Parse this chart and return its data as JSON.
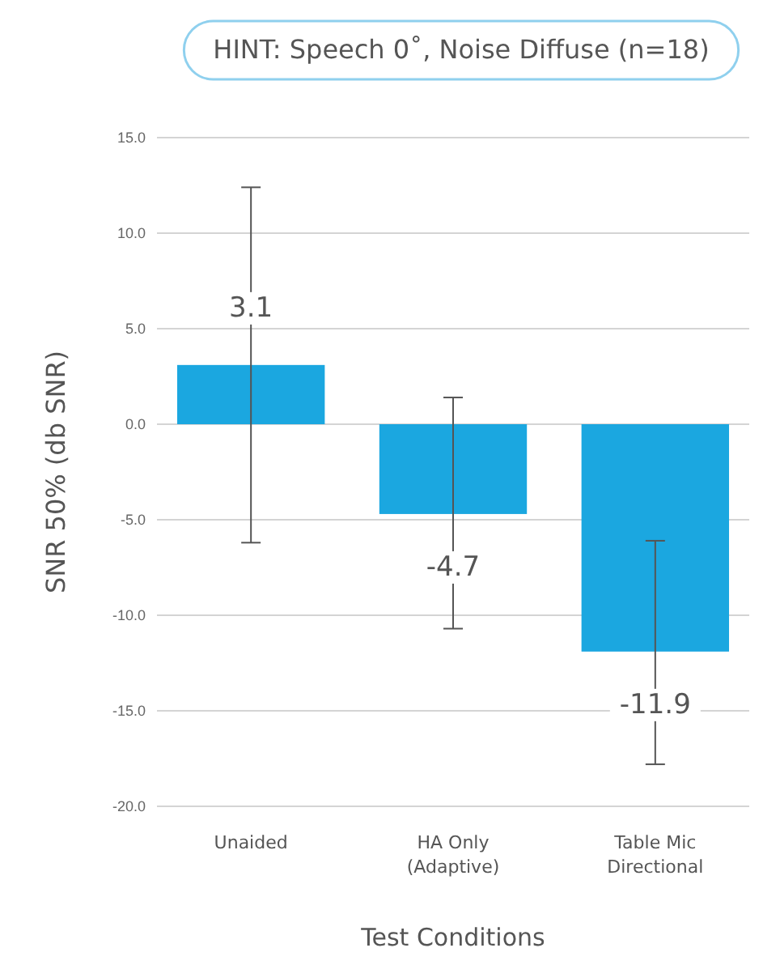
{
  "chart_data": {
    "type": "bar",
    "title": "HINT: Speech 0˚, Noise Diffuse (n=18)",
    "xlabel": "Test Conditions",
    "ylabel": "SNR 50% (db SNR)",
    "categories": [
      "Unaided",
      "HA Only\n(Adaptive)",
      "Table Mic\nDirectional"
    ],
    "values": [
      3.1,
      -4.7,
      -11.9
    ],
    "color": "#1ba7e0",
    "errors": [
      [
        -6.2,
        12.4
      ],
      [
        -10.7,
        1.4
      ],
      [
        -17.8,
        -6.1
      ]
    ],
    "ylim": [
      -20,
      15
    ],
    "yticks": [
      {
        "value": -20,
        "label": "-20.0"
      },
      {
        "value": -15,
        "label": "-15.0"
      },
      {
        "value": -10,
        "label": "-10.0"
      },
      {
        "value": -5,
        "label": "-5.0"
      },
      {
        "value": 0,
        "label": "0.0"
      },
      {
        "value": 5,
        "label": "5.0"
      },
      {
        "value": 10,
        "label": "10.0"
      },
      {
        "value": 15,
        "label": "15.0"
      }
    ],
    "grid": "y",
    "data_labels": true
  }
}
